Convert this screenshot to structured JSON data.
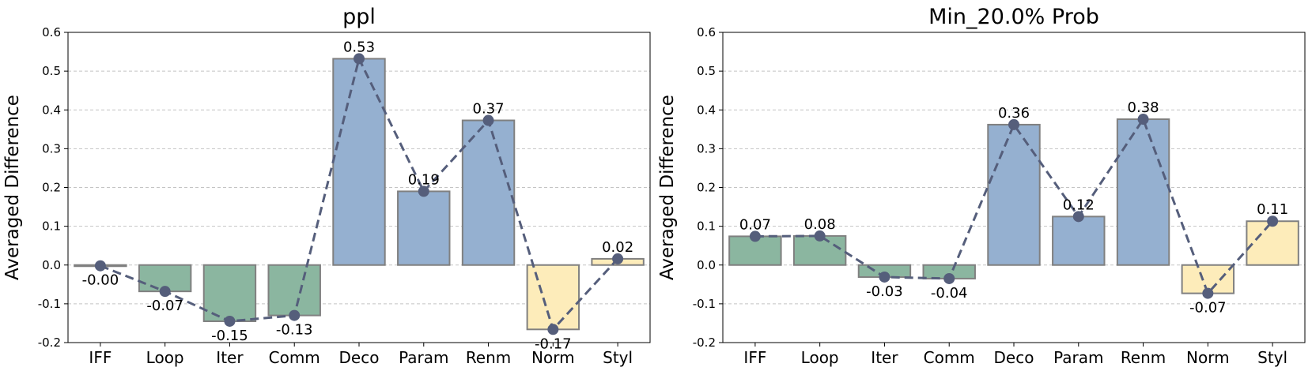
{
  "chart_data": [
    {
      "type": "bar",
      "title": "ppl",
      "xlabel": "",
      "ylabel": "Averaged Difference",
      "ylim": [
        -0.2,
        0.6
      ],
      "yticks": [
        "-0.2",
        "-0.1",
        "0.0",
        "0.1",
        "0.2",
        "0.3",
        "0.4",
        "0.5",
        "0.6"
      ],
      "grid": "horizontal dashed",
      "categories": [
        "IFF",
        "Loop",
        "Iter",
        "Comm",
        "Deco",
        "Param",
        "Renm",
        "Norm",
        "Styl"
      ],
      "values": [
        -0.002,
        -0.068,
        -0.145,
        -0.13,
        0.532,
        0.19,
        0.373,
        -0.166,
        0.016
      ],
      "labels": [
        "-0.00",
        "-0.07",
        "-0.15",
        "-0.13",
        "0.53",
        "0.19",
        "0.37",
        "-0.17",
        "0.02"
      ],
      "bar_colors": [
        "#8bb6a0",
        "#8bb6a0",
        "#8bb6a0",
        "#8bb6a0",
        "#95b0d0",
        "#95b0d0",
        "#95b0d0",
        "#fdecba",
        "#fdecba"
      ],
      "line": {
        "style": "dashed",
        "marker": "circle",
        "color": "#555e7b"
      }
    },
    {
      "type": "bar",
      "title": "Min_20.0% Prob",
      "xlabel": "",
      "ylabel": "Averaged Difference",
      "ylim": [
        -0.2,
        0.6
      ],
      "yticks": [
        "-0.2",
        "-0.1",
        "0.0",
        "0.1",
        "0.2",
        "0.3",
        "0.4",
        "0.5",
        "0.6"
      ],
      "grid": "horizontal dashed",
      "categories": [
        "IFF",
        "Loop",
        "Iter",
        "Comm",
        "Deco",
        "Param",
        "Renm",
        "Norm",
        "Styl"
      ],
      "values": [
        0.074,
        0.075,
        -0.031,
        -0.035,
        0.362,
        0.125,
        0.376,
        -0.073,
        0.113
      ],
      "labels": [
        "0.07",
        "0.08",
        "-0.03",
        "-0.04",
        "0.36",
        "0.12",
        "0.38",
        "-0.07",
        "0.11"
      ],
      "bar_colors": [
        "#8bb6a0",
        "#8bb6a0",
        "#8bb6a0",
        "#8bb6a0",
        "#95b0d0",
        "#95b0d0",
        "#95b0d0",
        "#fdecba",
        "#fdecba"
      ],
      "line": {
        "style": "dashed",
        "marker": "circle",
        "color": "#555e7b"
      }
    }
  ]
}
